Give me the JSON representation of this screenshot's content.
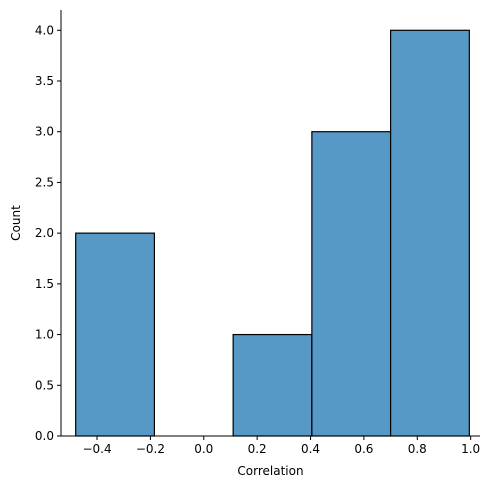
{
  "chart_data": {
    "type": "bar",
    "chart_kind": "histogram",
    "xlabel": "Correlation",
    "ylabel": "Count",
    "xlim": [
      -0.535,
      1.035
    ],
    "ylim": [
      0,
      4.2
    ],
    "x_ticks": [
      -0.4,
      -0.2,
      0.0,
      0.2,
      0.4,
      0.6,
      0.8,
      1.0
    ],
    "x_tick_labels": [
      "−0.4",
      "−0.2",
      "0.0",
      "0.2",
      "0.4",
      "0.6",
      "0.8",
      "1.0"
    ],
    "y_ticks": [
      0.0,
      0.5,
      1.0,
      1.5,
      2.0,
      2.5,
      3.0,
      3.5,
      4.0
    ],
    "y_tick_labels": [
      "0.0",
      "0.5",
      "1.0",
      "1.5",
      "2.0",
      "2.5",
      "3.0",
      "3.5",
      "4.0"
    ],
    "bins": [
      {
        "x0": -0.48,
        "x1": -0.185,
        "count": 2
      },
      {
        "x0": -0.185,
        "x1": 0.11,
        "count": 0
      },
      {
        "x0": 0.11,
        "x1": 0.405,
        "count": 1
      },
      {
        "x0": 0.405,
        "x1": 0.7,
        "count": 3
      },
      {
        "x0": 0.7,
        "x1": 0.995,
        "count": 4
      }
    ],
    "grid": false,
    "bar_color": "#5799c6",
    "edge_color": "#000000"
  }
}
